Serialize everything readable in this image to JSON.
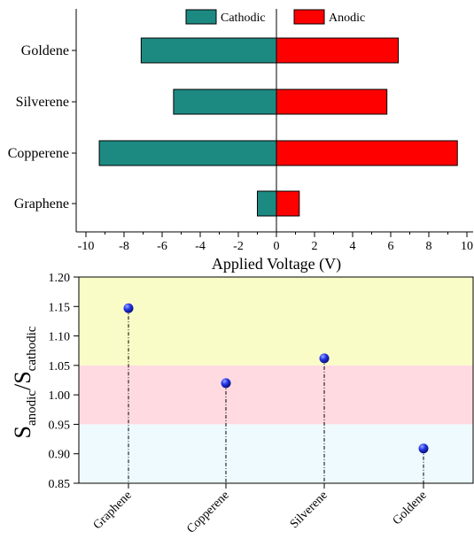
{
  "chart_data": [
    {
      "type": "bar",
      "orientation": "horizontal",
      "categories": [
        "Goldene",
        "Silverene",
        "Copperene",
        "Graphene"
      ],
      "series": [
        {
          "name": "Cathodic",
          "values": [
            -7.1,
            -5.4,
            -9.3,
            -1.0
          ],
          "color": "#1d8a82"
        },
        {
          "name": "Anodic",
          "values": [
            6.4,
            5.8,
            9.5,
            1.2
          ],
          "color": "#ff0000"
        }
      ],
      "xlabel": "Applied Voltage (V)",
      "ylabel": "",
      "xlim": [
        -10.5,
        10.5
      ],
      "xticks": [
        "-10",
        "-8",
        "-6",
        "-4",
        "-2",
        "0",
        "2",
        "4",
        "6",
        "8",
        "10"
      ],
      "grid": false,
      "legend": "top-center"
    },
    {
      "type": "scatter",
      "style": "lollipop",
      "categories": [
        "Graphene",
        "Copperene",
        "Silverene",
        "Goldene"
      ],
      "values": [
        1.147,
        1.02,
        1.062,
        0.909
      ],
      "ylabel_main": "S",
      "ylabel_sub1": "anodic",
      "ylabel_sep": "/S",
      "ylabel_sub2": "cathodic",
      "ylim": [
        0.85,
        1.2
      ],
      "yticks": [
        "0.85",
        "0.90",
        "0.95",
        "1.00",
        "1.05",
        "1.10",
        "1.15",
        "1.20"
      ],
      "bands": [
        {
          "from": 1.05,
          "to": 1.2,
          "color": "#fafcc8"
        },
        {
          "from": 0.95,
          "to": 1.05,
          "color": "#ffdbe1"
        },
        {
          "from": 0.85,
          "to": 0.95,
          "color": "#eefafd"
        }
      ],
      "marker_color": "#0b1ee6",
      "grid": false
    }
  ]
}
